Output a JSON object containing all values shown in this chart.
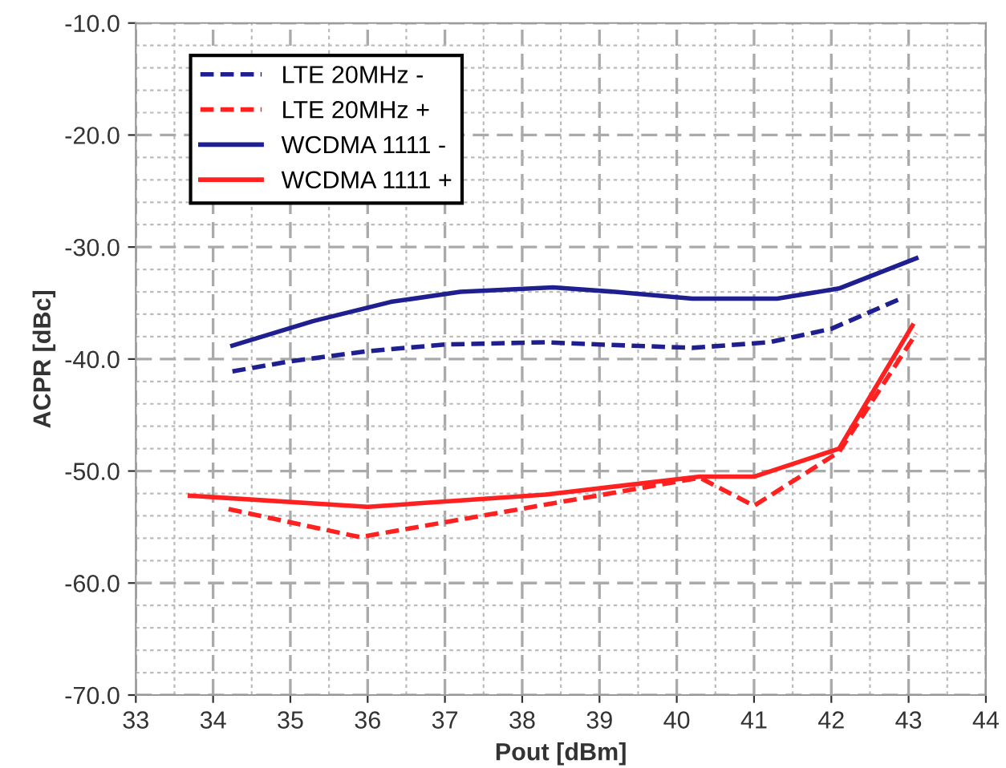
{
  "chart_data": {
    "type": "line",
    "xlabel": "Pout [dBm]",
    "ylabel": "ACPR [dBc]",
    "xlim": [
      33,
      44
    ],
    "xticks": [
      33,
      34,
      35,
      36,
      37,
      38,
      39,
      40,
      41,
      42,
      43,
      44
    ],
    "ylim": [
      -70,
      -10
    ],
    "yticks": [
      {
        "value": -70,
        "label": "-70.0"
      },
      {
        "value": -60,
        "label": "-60.0"
      },
      {
        "value": -50,
        "label": "-50.0"
      },
      {
        "value": -40,
        "label": "-40.0"
      },
      {
        "value": -30,
        "label": "-30.0"
      },
      {
        "value": -20,
        "label": "-20.0"
      },
      {
        "value": -10,
        "label": "-10.0"
      }
    ],
    "grid": true,
    "legend": "top left",
    "marker": "none",
    "series": [
      {
        "name": "LTE 20MHz -",
        "color": "#1f1f8f",
        "line_style": "dashed",
        "x": [
          34.25,
          35,
          36,
          37,
          38.3,
          39,
          40.2,
          41.2,
          42,
          42.9
        ],
        "values": [
          -41.1,
          -40.2,
          -39.3,
          -38.7,
          -38.5,
          -38.7,
          -39.0,
          -38.5,
          -37.3,
          -34.6
        ]
      },
      {
        "name": "LTE 20MHz +",
        "color": "#ff2020",
        "line_style": "dashed",
        "x": [
          34.2,
          35.9,
          38.3,
          40.3,
          41,
          42.1,
          43.1
        ],
        "values": [
          -53.4,
          -55.9,
          -53.0,
          -50.6,
          -53.1,
          -48.3,
          -37.7
        ]
      },
      {
        "name": "WCDMA 1111 -",
        "color": "#1f1f8f",
        "line_style": "solid",
        "x": [
          34.25,
          35.3,
          36.3,
          37.2,
          38.4,
          39.2,
          40.2,
          41.3,
          42.1,
          43.1
        ],
        "values": [
          -38.8,
          -36.6,
          -34.9,
          -34.0,
          -33.6,
          -34.0,
          -34.6,
          -34.6,
          -33.7,
          -31.0
        ]
      },
      {
        "name": "WCDMA 1111 +",
        "color": "#ff2020",
        "line_style": "solid",
        "x": [
          33.7,
          36,
          38.3,
          40.3,
          41,
          42.1,
          43.05
        ],
        "values": [
          -52.2,
          -53.2,
          -52.1,
          -50.5,
          -50.5,
          -48.0,
          -37.0
        ]
      }
    ]
  }
}
